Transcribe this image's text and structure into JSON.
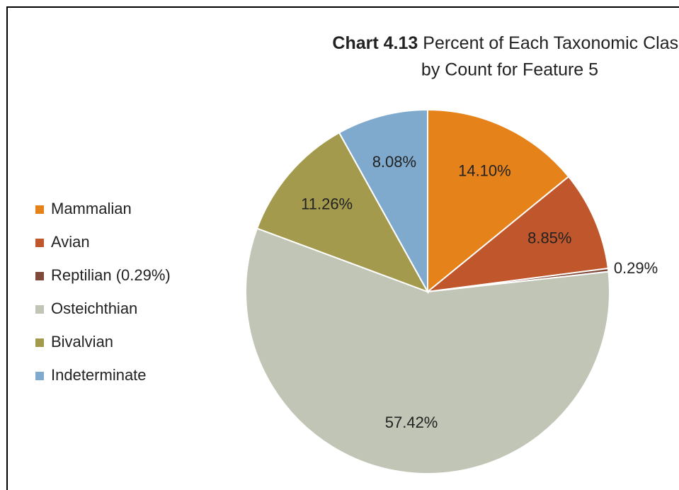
{
  "chart_data": {
    "type": "pie",
    "title_number": "Chart 4.13",
    "title": [
      "Percent of Each Taxonomic Class",
      "by Count for Feature 5"
    ],
    "categories": [
      "Mammalian",
      "Avian",
      "Reptilian (0.29%)",
      "Osteichthian",
      "Bivalvian",
      "Indeterminate"
    ],
    "values": [
      14.1,
      8.85,
      0.29,
      57.42,
      11.26,
      8.08
    ],
    "value_labels": [
      "14.10%",
      "8.85%",
      "0.29%",
      "57.42%",
      "11.26%",
      "8.08%"
    ],
    "colors": [
      "#e6821a",
      "#c0562b",
      "#7f4a3a",
      "#c0c5b5",
      "#a39a4e",
      "#7faacd"
    ],
    "legend": "left"
  }
}
